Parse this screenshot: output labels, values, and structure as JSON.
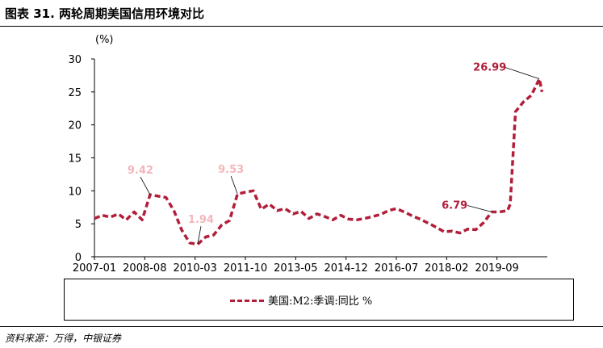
{
  "title": "图表 31. 两轮周期美国信用环境对比",
  "source": "资料来源：万得，中银证券",
  "chart_data": {
    "type": "line",
    "unit_label": "(%)",
    "ylim": [
      0,
      30
    ],
    "yticks": [
      0,
      5,
      10,
      15,
      20,
      25,
      30
    ],
    "xticks": [
      "2007-01",
      "2008-08",
      "2010-03",
      "2011-10",
      "2013-05",
      "2014-12",
      "2016-07",
      "2018-02",
      "2019-09"
    ],
    "legend": "美国:M2:季调:同比 %",
    "color": "#b11f3a",
    "series": [
      {
        "name": "美国:M2:季调:同比 %",
        "x": [
          "2007-01",
          "2007-04",
          "2007-07",
          "2007-10",
          "2008-01",
          "2008-04",
          "2008-07",
          "2008-10",
          "2009-01",
          "2009-04",
          "2009-07",
          "2009-10",
          "2010-01",
          "2010-04",
          "2010-07",
          "2010-10",
          "2011-01",
          "2011-04",
          "2011-07",
          "2011-10",
          "2012-01",
          "2012-04",
          "2012-07",
          "2012-10",
          "2013-01",
          "2013-04",
          "2013-07",
          "2013-10",
          "2014-01",
          "2014-04",
          "2014-07",
          "2014-10",
          "2015-01",
          "2015-04",
          "2015-07",
          "2015-10",
          "2016-01",
          "2016-04",
          "2016-07",
          "2016-10",
          "2017-01",
          "2017-04",
          "2017-07",
          "2017-10",
          "2018-01",
          "2018-04",
          "2018-07",
          "2018-10",
          "2019-01",
          "2019-04",
          "2019-07",
          "2019-10",
          "2020-01",
          "2020-02",
          "2020-04",
          "2020-07",
          "2020-10",
          "2021-01",
          "2021-02"
        ],
        "values": [
          5.8,
          6.3,
          6.0,
          6.5,
          5.6,
          6.8,
          5.6,
          9.4,
          9.2,
          9.0,
          7.0,
          4.0,
          2.1,
          1.9,
          3.0,
          3.3,
          4.8,
          5.5,
          9.5,
          9.8,
          10.0,
          7.2,
          8.0,
          7.0,
          7.3,
          6.5,
          6.9,
          5.8,
          6.5,
          6.1,
          5.6,
          6.3,
          5.7,
          5.6,
          5.8,
          6.1,
          6.4,
          7.0,
          7.3,
          6.8,
          6.2,
          5.7,
          5.1,
          4.5,
          3.8,
          3.9,
          3.6,
          4.2,
          4.1,
          5.2,
          6.79,
          6.8,
          7.0,
          8.0,
          22.0,
          23.5,
          24.5,
          26.99,
          25.0
        ]
      }
    ],
    "annotations": [
      {
        "label": "9.42",
        "x": "2008-10",
        "value": 9.42,
        "color": "#f3b6bb"
      },
      {
        "label": "1.94",
        "x": "2010-04",
        "value": 1.94,
        "color": "#f3b6bb"
      },
      {
        "label": "9.53",
        "x": "2011-07",
        "value": 9.53,
        "color": "#f3b6bb"
      },
      {
        "label": "6.79",
        "x": "2019-07",
        "value": 6.79,
        "color": "#b11f3a"
      },
      {
        "label": "26.99",
        "x": "2021-01",
        "value": 26.99,
        "color": "#b11f3a"
      }
    ]
  }
}
